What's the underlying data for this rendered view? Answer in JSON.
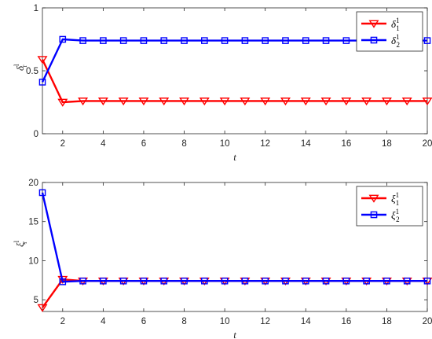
{
  "chart_data": [
    {
      "type": "line",
      "title": "",
      "xlabel": "t",
      "ylabel": {
        "base": "δ",
        "sub": "r",
        "sup": "l"
      },
      "xlim": [
        1,
        20
      ],
      "ylim": [
        0,
        1
      ],
      "xticks": [
        2,
        4,
        6,
        8,
        10,
        12,
        14,
        16,
        18,
        20
      ],
      "yticks": [
        0,
        0.5,
        1
      ],
      "ytick_labels": [
        "0",
        "0.5",
        "1"
      ],
      "legend_position": "top-right",
      "grid": false,
      "x": [
        1,
        2,
        3,
        4,
        5,
        6,
        7,
        8,
        9,
        10,
        11,
        12,
        13,
        14,
        15,
        16,
        17,
        18,
        19,
        20
      ],
      "series": [
        {
          "label": {
            "base": "δ",
            "sub": "1",
            "sup": "1"
          },
          "color": "#ff0000",
          "marker": "triangle-down",
          "values": [
            0.59,
            0.25,
            0.26,
            0.26,
            0.26,
            0.26,
            0.26,
            0.26,
            0.26,
            0.26,
            0.26,
            0.26,
            0.26,
            0.26,
            0.26,
            0.26,
            0.26,
            0.26,
            0.26,
            0.26
          ]
        },
        {
          "label": {
            "base": "δ",
            "sub": "2",
            "sup": "1"
          },
          "color": "#0000ff",
          "marker": "square",
          "values": [
            0.41,
            0.75,
            0.74,
            0.74,
            0.74,
            0.74,
            0.74,
            0.74,
            0.74,
            0.74,
            0.74,
            0.74,
            0.74,
            0.74,
            0.74,
            0.74,
            0.74,
            0.74,
            0.74,
            0.74
          ]
        }
      ]
    },
    {
      "type": "line",
      "title": "",
      "xlabel": "t",
      "ylabel": {
        "base": "ξ",
        "sub": "r",
        "sup": "l"
      },
      "xlim": [
        1,
        20
      ],
      "ylim": [
        3.5,
        20
      ],
      "xticks": [
        2,
        4,
        6,
        8,
        10,
        12,
        14,
        16,
        18,
        20
      ],
      "yticks": [
        5,
        10,
        15,
        20
      ],
      "ytick_labels": [
        "5",
        "10",
        "15",
        "20"
      ],
      "legend_position": "top-right",
      "grid": false,
      "x": [
        1,
        2,
        3,
        4,
        5,
        6,
        7,
        8,
        9,
        10,
        11,
        12,
        13,
        14,
        15,
        16,
        17,
        18,
        19,
        20
      ],
      "series": [
        {
          "label": {
            "base": "ξ",
            "sub": "1",
            "sup": "1"
          },
          "color": "#ff0000",
          "marker": "triangle-down",
          "values": [
            4.0,
            7.6,
            7.4,
            7.4,
            7.4,
            7.4,
            7.4,
            7.4,
            7.4,
            7.4,
            7.4,
            7.4,
            7.4,
            7.4,
            7.4,
            7.4,
            7.4,
            7.4,
            7.4,
            7.4
          ]
        },
        {
          "label": {
            "base": "ξ",
            "sub": "2",
            "sup": "1"
          },
          "color": "#0000ff",
          "marker": "square",
          "values": [
            18.7,
            7.3,
            7.4,
            7.4,
            7.4,
            7.4,
            7.4,
            7.4,
            7.4,
            7.4,
            7.4,
            7.4,
            7.4,
            7.4,
            7.4,
            7.4,
            7.4,
            7.4,
            7.4,
            7.4
          ]
        }
      ]
    }
  ]
}
